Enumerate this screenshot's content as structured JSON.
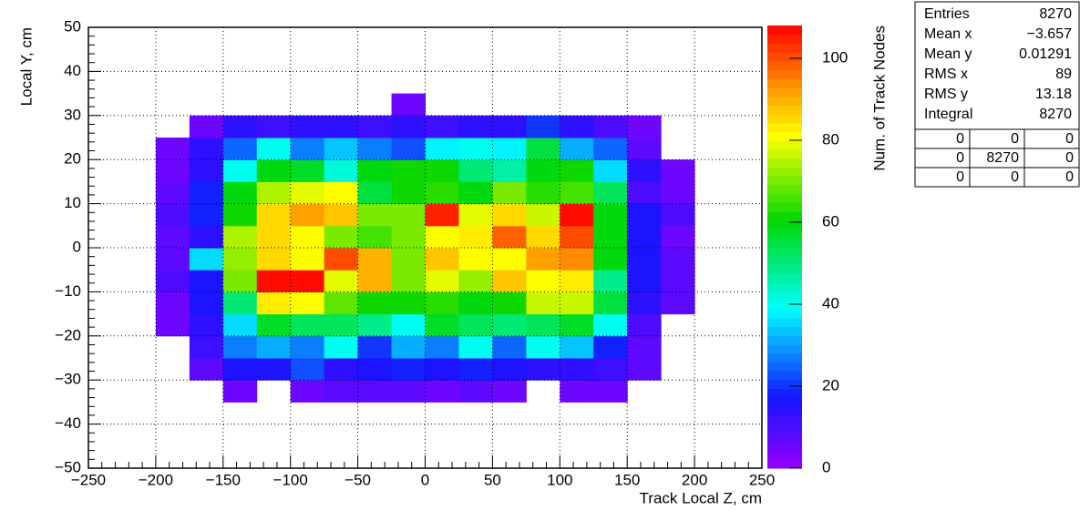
{
  "chart_data": {
    "type": "heatmap",
    "x_label": "Track Local Z, cm",
    "y_label": "Local Y, cm",
    "z_label": "Num. of Track Nodes",
    "xlim": [
      -250,
      250
    ],
    "ylim": [
      -50,
      50
    ],
    "zlim": [
      0,
      108
    ],
    "xticks": [
      {
        "value": -250,
        "label": "−250"
      },
      {
        "value": -200,
        "label": "−200"
      },
      {
        "value": -150,
        "label": "−150"
      },
      {
        "value": -100,
        "label": "−100"
      },
      {
        "value": -50,
        "label": "−50"
      },
      0,
      50,
      100,
      150,
      200,
      250
    ],
    "yticks": [
      {
        "value": -50,
        "label": "−50"
      },
      {
        "value": -40,
        "label": "−40"
      },
      {
        "value": -30,
        "label": "−30"
      },
      {
        "value": -20,
        "label": "−20"
      },
      {
        "value": -10,
        "label": "−10"
      },
      0,
      10,
      20,
      30,
      40,
      50
    ],
    "zticks": [
      0,
      20,
      40,
      60,
      80,
      100
    ],
    "grid": true,
    "xbins": [
      -200,
      -175,
      -150,
      -125,
      -100,
      -75,
      -50,
      -25,
      0,
      25,
      50,
      75,
      100,
      125,
      150,
      175,
      200
    ],
    "ybins": [
      -35,
      -30,
      -25,
      -20,
      -15,
      -10,
      -5,
      0,
      5,
      10,
      15,
      20,
      25,
      30,
      35
    ],
    "z": [
      [
        null,
        null,
        6,
        null,
        6,
        7,
        8,
        7,
        6,
        8,
        6,
        null,
        6,
        6,
        null,
        null
      ],
      [
        null,
        7,
        16,
        16,
        22,
        14,
        16,
        19,
        16,
        19,
        16,
        15,
        15,
        12,
        7,
        null
      ],
      [
        null,
        11,
        28,
        32,
        27,
        40,
        20,
        32,
        27,
        40,
        24,
        40,
        33,
        18,
        8,
        null
      ],
      [
        6,
        14,
        36,
        58,
        52,
        52,
        48,
        40,
        58,
        52,
        50,
        52,
        58,
        40,
        10,
        null
      ],
      [
        6,
        16,
        50,
        84,
        80,
        68,
        62,
        62,
        64,
        60,
        62,
        76,
        76,
        56,
        15,
        7
      ],
      [
        9,
        16,
        70,
        106,
        106,
        78,
        90,
        70,
        78,
        72,
        88,
        80,
        84,
        48,
        16,
        7
      ],
      [
        7,
        35,
        72,
        86,
        80,
        100,
        90,
        70,
        88,
        80,
        80,
        92,
        94,
        60,
        16,
        7
      ],
      [
        7,
        15,
        74,
        86,
        82,
        70,
        66,
        70,
        80,
        84,
        98,
        86,
        100,
        60,
        16,
        6
      ],
      [
        10,
        18,
        62,
        86,
        92,
        88,
        70,
        70,
        104,
        78,
        86,
        76,
        106,
        60,
        16,
        10
      ],
      [
        7,
        18,
        60,
        74,
        78,
        80,
        54,
        62,
        64,
        60,
        70,
        64,
        66,
        52,
        10,
        6
      ],
      [
        6,
        14,
        40,
        60,
        57,
        42,
        60,
        62,
        62,
        50,
        46,
        60,
        62,
        36,
        14,
        6
      ],
      [
        6,
        14,
        25,
        40,
        27,
        33,
        27,
        22,
        38,
        40,
        38,
        55,
        32,
        25,
        8,
        null
      ],
      [
        null,
        6,
        15,
        12,
        15,
        15,
        12,
        15,
        12,
        14,
        15,
        20,
        14,
        10,
        6,
        null
      ],
      [
        null,
        null,
        null,
        null,
        null,
        null,
        null,
        5,
        null,
        null,
        null,
        null,
        null,
        null,
        null,
        null
      ]
    ],
    "stats": {
      "rows": [
        [
          "Entries",
          "8270"
        ],
        [
          "Mean x",
          "−3.657"
        ],
        [
          "Mean y",
          "0.01291"
        ],
        [
          "RMS x",
          "89"
        ],
        [
          "RMS y",
          "13.18"
        ],
        [
          "Integral",
          "8270"
        ]
      ],
      "bins": [
        [
          0,
          0,
          0
        ],
        [
          0,
          8270,
          0
        ],
        [
          0,
          0,
          0
        ]
      ]
    }
  }
}
